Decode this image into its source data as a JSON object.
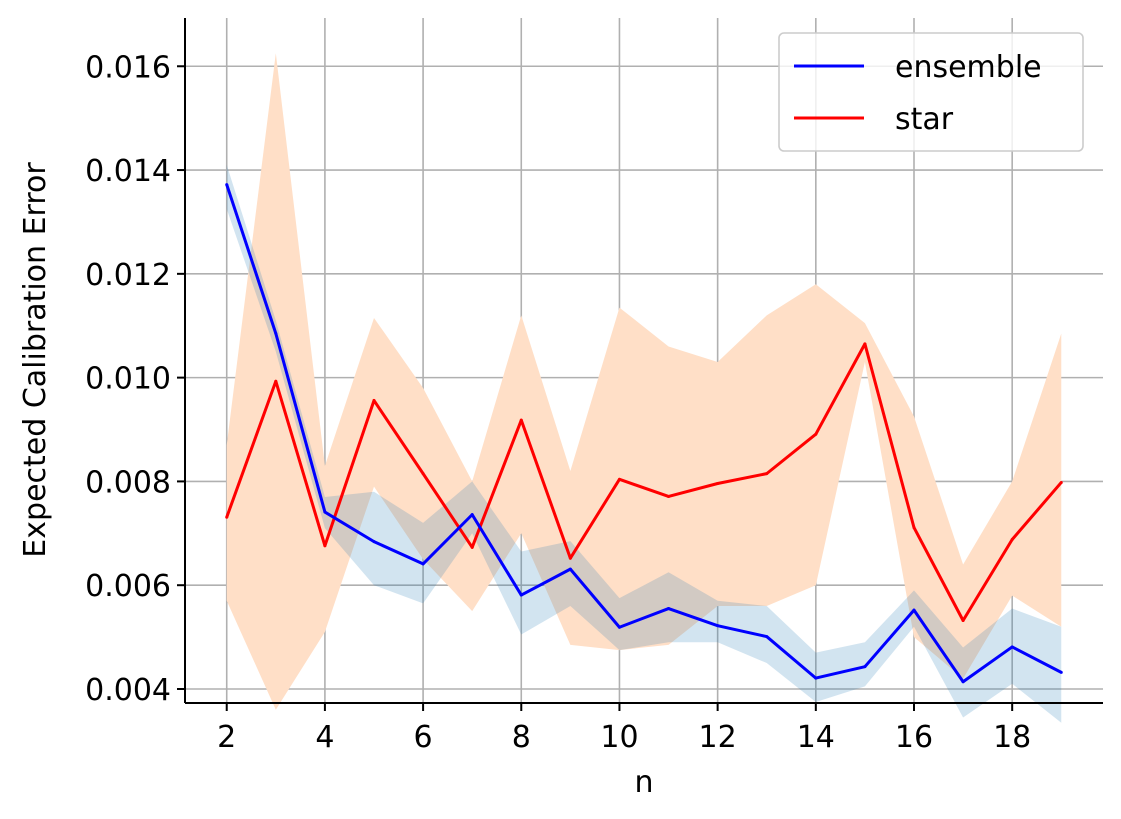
{
  "chart_data": {
    "type": "line",
    "xlabel": "n",
    "ylabel": "Expected Calibration Error",
    "xlim": [
      1.15,
      19.85
    ],
    "ylim": [
      0.00373,
      0.01693
    ],
    "x_ticks": [
      2,
      4,
      6,
      8,
      10,
      12,
      14,
      16,
      18
    ],
    "y_ticks": [
      0.004,
      0.006,
      0.008,
      0.01,
      0.012,
      0.014,
      0.016
    ],
    "y_tick_labels": [
      "0.004",
      "0.006",
      "0.008",
      "0.010",
      "0.012",
      "0.014",
      "0.016"
    ],
    "grid": true,
    "legend_position": "top-right",
    "x": [
      2,
      3,
      4,
      5,
      6,
      7,
      8,
      9,
      10,
      11,
      12,
      13,
      14,
      15,
      16,
      17,
      18,
      19
    ],
    "series": [
      {
        "name": "ensemble",
        "color": "#0000ff",
        "band_color": "#1f77b4",
        "values": [
          0.01372,
          0.01085,
          0.00741,
          0.00684,
          0.00641,
          0.00736,
          0.00581,
          0.00631,
          0.00519,
          0.00555,
          0.00522,
          0.00501,
          0.00421,
          0.00443,
          0.00552,
          0.00414,
          0.00481,
          0.00432
        ],
        "band_upper": [
          0.0141,
          0.0111,
          0.0077,
          0.0078,
          0.0072,
          0.008,
          0.00665,
          0.00685,
          0.00575,
          0.00625,
          0.0057,
          0.0056,
          0.0047,
          0.0049,
          0.0059,
          0.0048,
          0.00555,
          0.0052
        ],
        "band_lower": [
          0.01325,
          0.0105,
          0.0071,
          0.006,
          0.00565,
          0.007,
          0.00505,
          0.0056,
          0.00475,
          0.0049,
          0.0049,
          0.0045,
          0.00375,
          0.00405,
          0.0052,
          0.00345,
          0.0041,
          0.00335
        ]
      },
      {
        "name": "star",
        "color": "#ff0000",
        "band_color": "#ffdfc7",
        "values": [
          0.00731,
          0.00993,
          0.00676,
          0.00956,
          0.00815,
          0.00673,
          0.00918,
          0.00652,
          0.00804,
          0.00771,
          0.00796,
          0.00815,
          0.00891,
          0.01065,
          0.00711,
          0.00532,
          0.00688,
          0.00798
        ],
        "band_upper": [
          0.0087,
          0.01625,
          0.0083,
          0.01115,
          0.0098,
          0.008,
          0.0112,
          0.0082,
          0.01135,
          0.0106,
          0.0103,
          0.0112,
          0.0118,
          0.01105,
          0.00925,
          0.0064,
          0.008,
          0.01085
        ],
        "band_lower": [
          0.0057,
          0.0036,
          0.0051,
          0.0079,
          0.0065,
          0.0055,
          0.007,
          0.00485,
          0.00475,
          0.00485,
          0.0056,
          0.0056,
          0.006,
          0.0103,
          0.005,
          0.0042,
          0.0058,
          0.0052
        ]
      }
    ]
  }
}
